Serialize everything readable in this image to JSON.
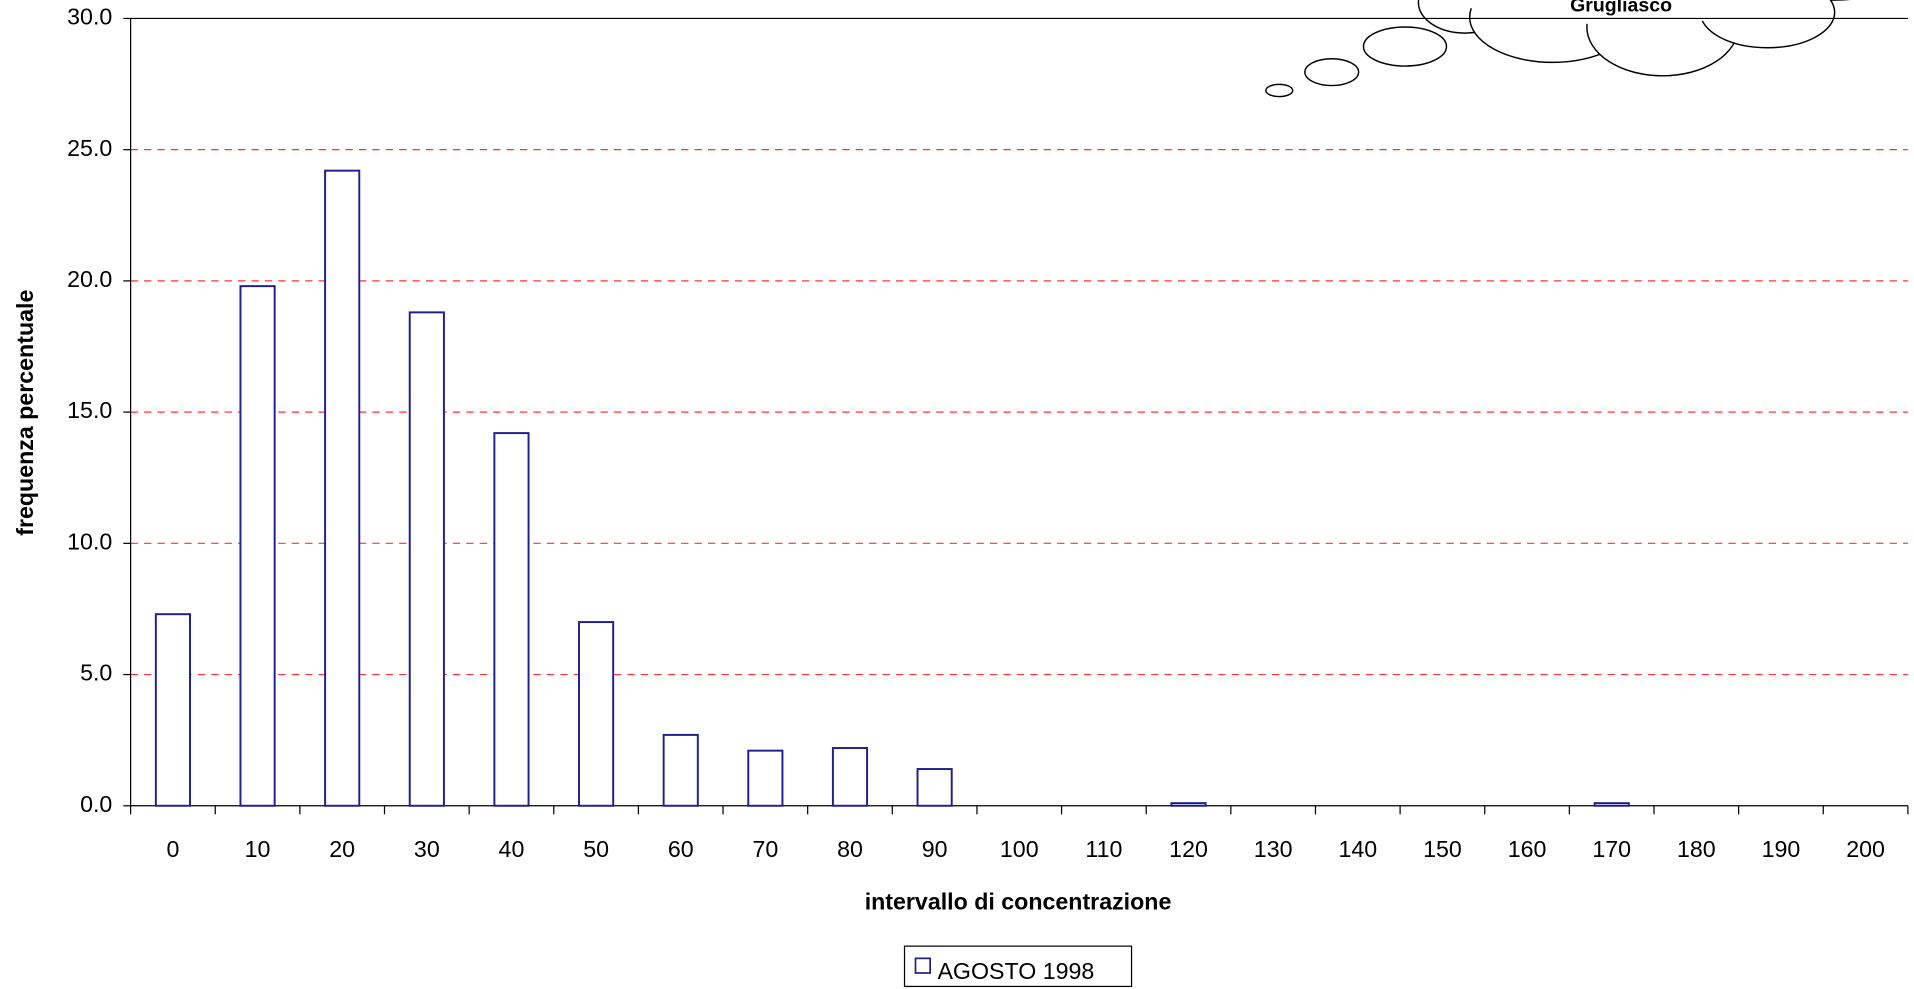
{
  "chart_data": {
    "type": "bar",
    "annotation": "Grugliasco",
    "x_label": "intervallo di concentrazione",
    "y_label": "frequenza percentuale",
    "categories": [
      "0",
      "10",
      "20",
      "30",
      "40",
      "50",
      "60",
      "70",
      "80",
      "90",
      "100",
      "110",
      "120",
      "130",
      "140",
      "150",
      "160",
      "170",
      "180",
      "190",
      "200"
    ],
    "series": [
      {
        "name": "AGOSTO 1998",
        "color": "#1f1f8f",
        "values": [
          7.3,
          19.8,
          24.2,
          18.8,
          14.2,
          7.0,
          2.7,
          2.1,
          2.2,
          1.4,
          0,
          0,
          0.1,
          0,
          0,
          0,
          0,
          0.1,
          0,
          0,
          0
        ]
      }
    ],
    "ylim": [
      0,
      30
    ],
    "yticks": [
      {
        "value": 0,
        "label": "0.0"
      },
      {
        "value": 5,
        "label": "5.0"
      },
      {
        "value": 10,
        "label": "10.0"
      },
      {
        "value": 15,
        "label": "15.0"
      },
      {
        "value": 20,
        "label": "20.0"
      },
      {
        "value": 25,
        "label": "25.0"
      },
      {
        "value": 30,
        "label": "30.0"
      }
    ],
    "grid": true,
    "grid_color": "#ff3333",
    "legend": "bottom"
  }
}
